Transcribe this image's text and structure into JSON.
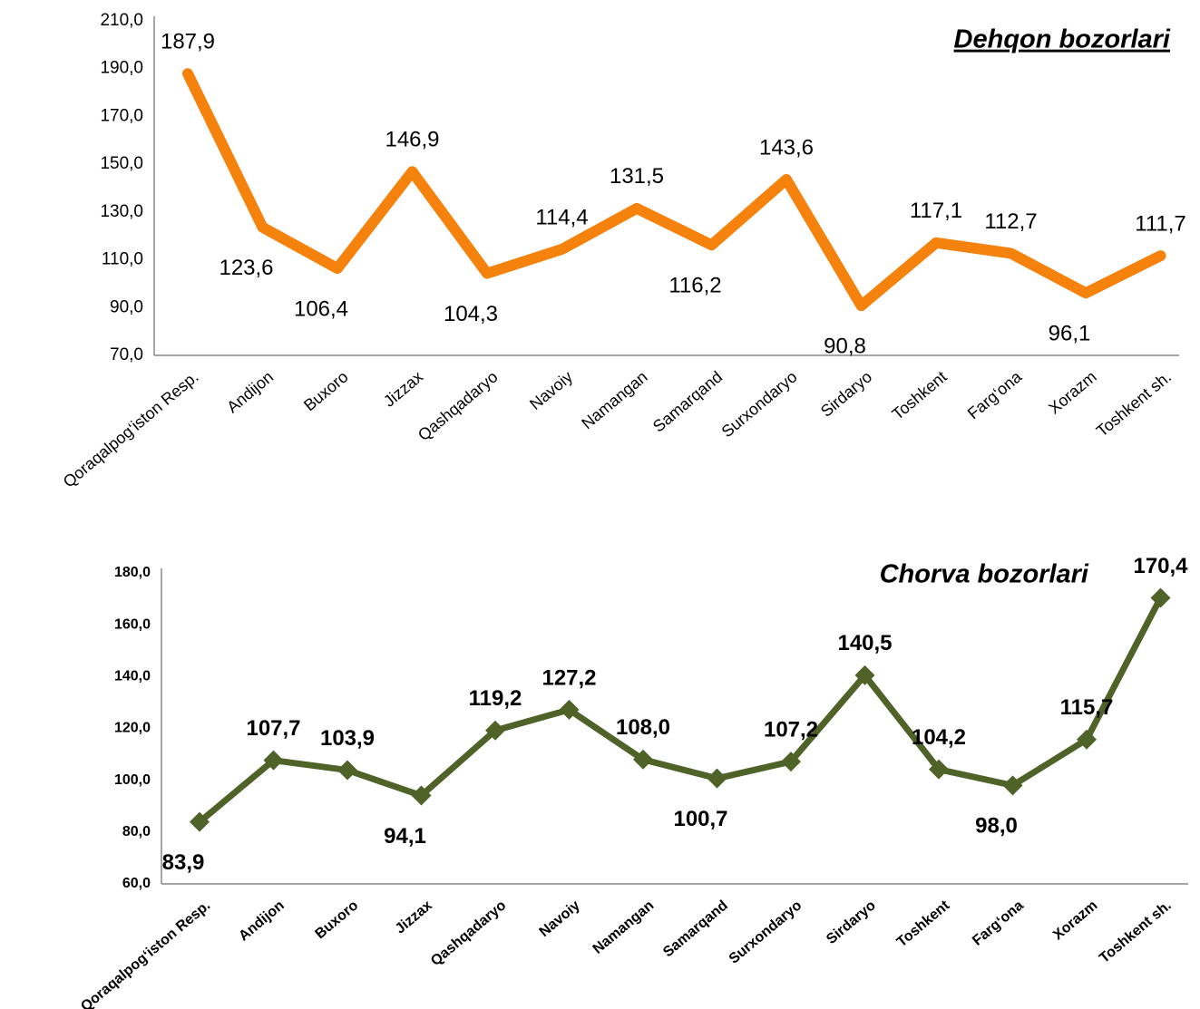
{
  "chart_data": [
    {
      "type": "line",
      "title": "Dehqon bozorlari",
      "categories": [
        "Qoraqalpog‘iston Resp.",
        "Andijon",
        "Buxoro",
        "Jizzax",
        "Qashqadaryo",
        "Navoiy",
        "Namangan",
        "Samarqand",
        "Surxondaryo",
        "Sirdaryo",
        "Toshkent",
        "Farg‘ona",
        "Xorazm",
        "Toshkent sh."
      ],
      "series": [
        {
          "name": "Dehqon bozorlari",
          "color": "#F5820D",
          "values": [
            187.9,
            123.6,
            106.4,
            146.9,
            104.3,
            114.4,
            131.5,
            116.2,
            143.6,
            90.8,
            117.1,
            112.7,
            96.1,
            111.7
          ],
          "value_labels": [
            "187,9",
            "123,6",
            "106,4",
            "146,9",
            "104,3",
            "114,4",
            "131,5",
            "116,2",
            "143,6",
            "90,8",
            "117,1",
            "112,7",
            "96,1",
            "111,7"
          ]
        }
      ],
      "ylim": [
        70,
        210
      ],
      "yticks": [
        {
          "value": 70,
          "label": "70,0"
        },
        {
          "value": 90,
          "label": "90,0"
        },
        {
          "value": 110,
          "label": "110,0"
        },
        {
          "value": 130,
          "label": "130,0"
        },
        {
          "value": 150,
          "label": "150,0"
        },
        {
          "value": 170,
          "label": "170,0"
        },
        {
          "value": 190,
          "label": "190,0"
        },
        {
          "value": 210,
          "label": "210,0"
        }
      ],
      "grid": false,
      "marker": "none"
    },
    {
      "type": "line",
      "title": "Chorva bozorlari",
      "categories": [
        "Qoraqalpog‘iston Resp.",
        "Andijon",
        "Buxoro",
        "Jizzax",
        "Qashqadaryo",
        "Navoiy",
        "Namangan",
        "Samarqand",
        "Surxondaryo",
        "Sirdaryo",
        "Toshkent",
        "Farg‘ona",
        "Xorazm",
        "Toshkent sh."
      ],
      "series": [
        {
          "name": "Chorva bozorlari",
          "color": "#4F6228",
          "values": [
            83.9,
            107.7,
            103.9,
            94.1,
            119.2,
            127.2,
            108.0,
            100.7,
            107.2,
            140.5,
            104.2,
            98.0,
            115.7,
            170.4
          ],
          "value_labels": [
            "83,9",
            "107,7",
            "103,9",
            "94,1",
            "119,2",
            "127,2",
            "108,0",
            "100,7",
            "107,2",
            "140,5",
            "104,2",
            "98,0",
            "115,7",
            "170,4"
          ]
        }
      ],
      "ylim": [
        60,
        180
      ],
      "yticks": [
        {
          "value": 60,
          "label": "60,0"
        },
        {
          "value": 80,
          "label": "80,0"
        },
        {
          "value": 100,
          "label": "100,0"
        },
        {
          "value": 120,
          "label": "120,0"
        },
        {
          "value": 140,
          "label": "140,0"
        },
        {
          "value": 160,
          "label": "160,0"
        },
        {
          "value": 180,
          "label": "180,0"
        }
      ],
      "grid": false,
      "marker": "diamond"
    }
  ]
}
